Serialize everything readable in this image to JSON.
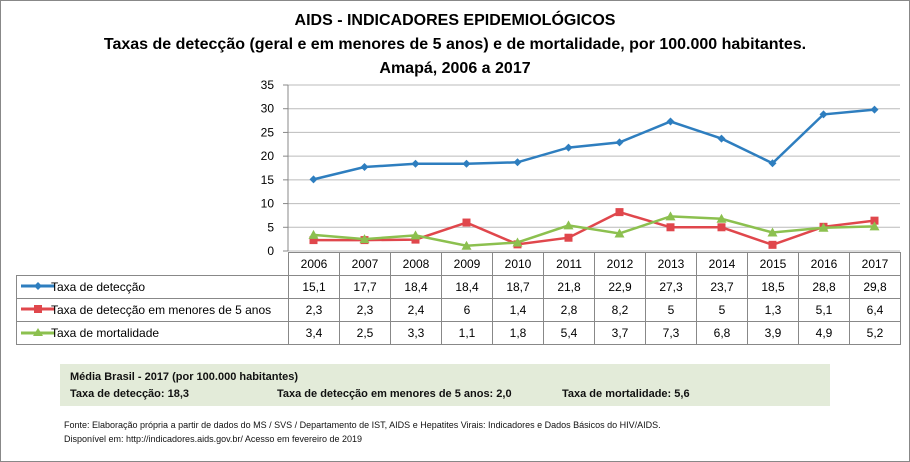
{
  "titles": [
    "AIDS - INDICADORES EPIDEMIOLÓGICOS",
    "Taxas de detecção (geral e em menores de 5 anos) e de mortalidade, por 100.000 habitantes.",
    "Amapá, 2006 a 2017"
  ],
  "chart_data": {
    "type": "line",
    "title": "AIDS - INDICADORES EPIDEMIOLÓGICOS",
    "categories": [
      "2006",
      "2007",
      "2008",
      "2009",
      "2010",
      "2011",
      "2012",
      "2013",
      "2014",
      "2015",
      "2016",
      "2017"
    ],
    "ylim": [
      0,
      35
    ],
    "yticks": [
      "0",
      "5",
      "10",
      "15",
      "20",
      "25",
      "30",
      "35"
    ],
    "grid": true,
    "legend": "table-below",
    "series": [
      {
        "name": "Taxa de detecção",
        "color": "#2e7ebf",
        "marker": "diamond",
        "values": [
          15.1,
          17.7,
          18.4,
          18.4,
          18.7,
          21.8,
          22.9,
          27.3,
          23.7,
          18.5,
          28.8,
          29.8
        ],
        "labels": [
          "15,1",
          "17,7",
          "18,4",
          "18,4",
          "18,7",
          "21,8",
          "22,9",
          "27,3",
          "23,7",
          "18,5",
          "28,8",
          "29,8"
        ]
      },
      {
        "name": "Taxa de detecção em menores de 5 anos",
        "color": "#e0474c",
        "marker": "square",
        "values": [
          2.3,
          2.3,
          2.4,
          6,
          1.4,
          2.8,
          8.2,
          5,
          5,
          1.3,
          5.1,
          6.4
        ],
        "labels": [
          "2,3",
          "2,3",
          "2,4",
          "6",
          "1,4",
          "2,8",
          "8,2",
          "5",
          "5",
          "1,3",
          "5,1",
          "6,4"
        ]
      },
      {
        "name": "Taxa de mortalidade",
        "color": "#8cc04f",
        "marker": "triangle",
        "values": [
          3.4,
          2.5,
          3.3,
          1.1,
          1.8,
          5.4,
          3.7,
          7.3,
          6.8,
          3.9,
          4.9,
          5.2
        ],
        "labels": [
          "3,4",
          "2,5",
          "3,3",
          "1,1",
          "1,8",
          "5,4",
          "3,7",
          "7,3",
          "6,8",
          "3,9",
          "4,9",
          "5,2"
        ]
      }
    ]
  },
  "brasil": {
    "heading": "Média Brasil - 2017  (por 100.000 habitantes)",
    "det": "Taxa  de detecção: 18,3",
    "det5": "Taxa  de detecção em menores de 5 anos: 2,0",
    "mort": "Taxa  de mortalidade: 5,6"
  },
  "source": [
    "Fonte: Elaboração própria a partir de dados do MS / SVS / Departamento de IST, AIDS e Hepatites Virais: Indicadores e Dados Básicos do HIV/AIDS.",
    "Disponível em: http://indicadores.aids.gov.br/   Acesso em fevereiro de 2019"
  ]
}
